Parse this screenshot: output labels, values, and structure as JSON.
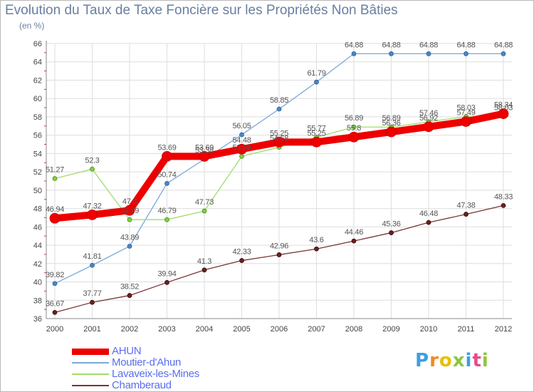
{
  "title": "Evolution du Taux de Taxe Foncière sur les Propriétés Non Bâties",
  "unit": "(en %)",
  "brand": {
    "letters": [
      "P",
      "r",
      "o",
      "x",
      "i",
      "t",
      "i"
    ],
    "colors": [
      "#3aa0e0",
      "#f08a1c",
      "#e8c000",
      "#8cc63e",
      "#3aa0e0",
      "#e84b8a",
      "#8cc63e"
    ]
  },
  "chart_data": {
    "type": "line",
    "title": "Evolution du Taux de Taxe Foncière sur les Propriétés Non Bâties",
    "ylabel": "(en %)",
    "xlabel": "",
    "x": [
      "2000",
      "2001",
      "2002",
      "2003",
      "2004",
      "2005",
      "2006",
      "2007",
      "2008",
      "2009",
      "2010",
      "2011",
      "2012"
    ],
    "ylim": [
      36,
      66
    ],
    "yticks": [
      "36",
      "38",
      "40",
      "42",
      "44",
      "46",
      "48",
      "50",
      "52",
      "54",
      "56",
      "58",
      "60",
      "62",
      "64",
      "66"
    ],
    "grid": true,
    "legend_position": "bottom-left",
    "series": [
      {
        "name": "AHUN",
        "color": "#ee0000",
        "values": [
          46.94,
          47.32,
          47.8,
          53.69,
          53.69,
          54.48,
          55.25,
          55.25,
          55.8,
          56.36,
          56.92,
          57.49,
          58.34
        ],
        "labels": [
          "46.94",
          "47.32",
          "47.8",
          "53.69",
          "53.69",
          "54.48",
          "55.25",
          "55.25",
          "55.8",
          "56.36",
          "56.92",
          "57.49",
          "58.34"
        ]
      },
      {
        "name": "Moutier-d'Ahun",
        "color": "#7ba7d8",
        "values": [
          39.82,
          41.81,
          43.89,
          50.74,
          53.38,
          56.05,
          58.85,
          61.79,
          64.88,
          64.88,
          64.88,
          64.88,
          64.88
        ],
        "labels": [
          "39.82",
          "41.81",
          "43.89",
          "50.74",
          "53.38",
          "56.05",
          "58.85",
          "61.79",
          "64.88",
          "64.88",
          "64.88",
          "64.88",
          "64.88"
        ]
      },
      {
        "name": "Lavaveix-les-Mines",
        "color": "#a0dc6e",
        "values": [
          51.27,
          52.3,
          46.79,
          46.79,
          47.73,
          53.69,
          54.68,
          55.77,
          56.89,
          56.89,
          57.46,
          58.03,
          58.03
        ],
        "labels": [
          "51.27",
          "52.3",
          "46.79",
          "46.79",
          "47.73",
          "53.69",
          "54.68",
          "55.77",
          "56.89",
          "56.89",
          "57.46",
          "58.03",
          "58.03"
        ]
      },
      {
        "name": "Chamberaud",
        "color": "#7a3535",
        "values": [
          36.67,
          37.77,
          38.52,
          39.94,
          41.3,
          42.33,
          42.96,
          43.6,
          44.46,
          45.36,
          46.48,
          47.38,
          48.33
        ],
        "labels": [
          "36.67",
          "37.77",
          "38.52",
          "39.94",
          "41.3",
          "42.33",
          "42.96",
          "43.6",
          "44.46",
          "45.36",
          "46.48",
          "47.38",
          "48.33"
        ]
      }
    ]
  }
}
